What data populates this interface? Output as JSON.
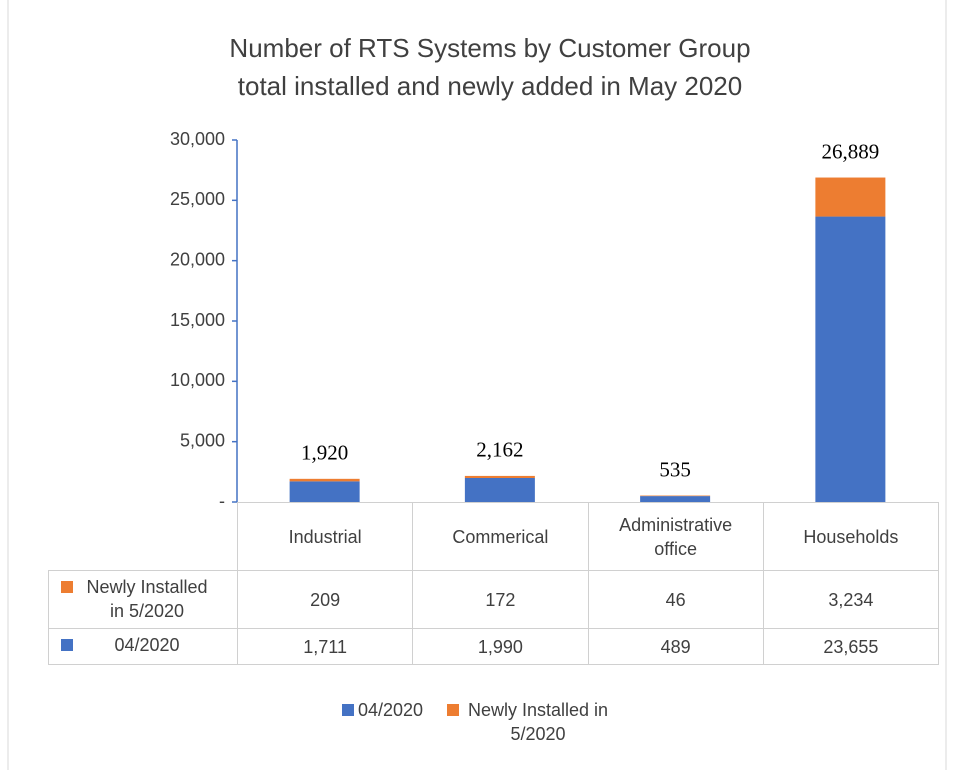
{
  "chart_data": {
    "type": "bar",
    "stacked": true,
    "title": "Number of RTS Systems by Customer Group",
    "subtitle": "total installed and newly added in May 2020",
    "categories": [
      "Industrial",
      "Commerical",
      "Administrative office",
      "Households"
    ],
    "series": [
      {
        "name": "04/2020",
        "color": "#4472c4",
        "values": [
          1711,
          1990,
          489,
          23655
        ],
        "value_labels": [
          "1,711",
          "1,990",
          "489",
          "23,655"
        ]
      },
      {
        "name": "Newly Installed in 5/2020",
        "color": "#ed7d31",
        "values": [
          209,
          172,
          46,
          3234
        ],
        "value_labels": [
          "209",
          "172",
          "46",
          "3,234"
        ]
      }
    ],
    "total_labels": [
      "1,920",
      "2,162",
      "535",
      "26,889"
    ],
    "ylim": [
      0,
      30000
    ],
    "yticks": [
      {
        "value": 0,
        "label": "-"
      },
      {
        "value": 5000,
        "label": "5,000"
      },
      {
        "value": 10000,
        "label": "10,000"
      },
      {
        "value": 15000,
        "label": "15,000"
      },
      {
        "value": 20000,
        "label": "20,000"
      },
      {
        "value": 25000,
        "label": "25,000"
      },
      {
        "value": 30000,
        "label": "30,000"
      }
    ],
    "table_row_order": [
      1,
      0
    ]
  }
}
